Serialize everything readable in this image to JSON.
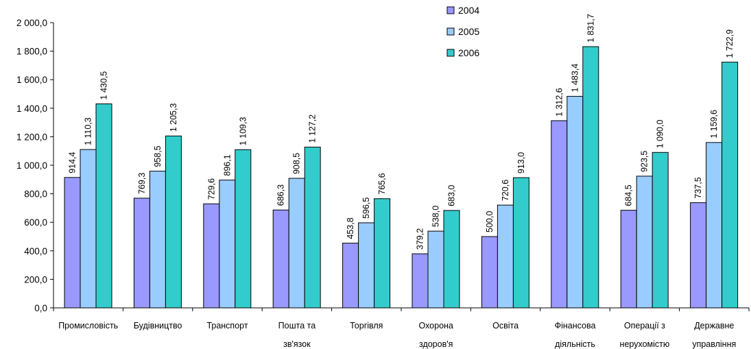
{
  "chart_data": {
    "type": "bar",
    "title": "",
    "xlabel": "",
    "ylabel": "",
    "ylim": [
      0,
      2000
    ],
    "yticks": [
      0,
      200,
      400,
      600,
      800,
      1000,
      1200,
      1400,
      1600,
      1800,
      2000
    ],
    "ytick_labels": [
      "0,0",
      "200,0",
      "400,0",
      "600,0",
      "800,0",
      "1 000,0",
      "1 200,0",
      "1 400,0",
      "1 600,0",
      "1 800,0",
      "2 000,0"
    ],
    "grid": false,
    "legend_position": "top-right",
    "categories": [
      [
        "Промисловість"
      ],
      [
        "Будівництво"
      ],
      [
        "Транспорт"
      ],
      [
        "Пошта та",
        "зв'язок"
      ],
      [
        "Торгівля"
      ],
      [
        "Охорона",
        "здоров'я"
      ],
      [
        "Освіта"
      ],
      [
        "Фінансова",
        "діяльність"
      ],
      [
        "Операції з",
        "нерухомістю"
      ],
      [
        "Державне",
        "управління"
      ]
    ],
    "series": [
      {
        "name": "2004",
        "color": "#9999ff",
        "values": [
          914.4,
          769.3,
          729.6,
          686.3,
          453.8,
          379.2,
          500.0,
          1312.6,
          684.5,
          737.5
        ],
        "labels": [
          "914,4",
          "769,3",
          "729,6",
          "686,3",
          "453,8",
          "379,2",
          "500,0",
          "1 312,6",
          "684,5",
          "737,5"
        ]
      },
      {
        "name": "2005",
        "color": "#99ccff",
        "values": [
          1110.3,
          958.5,
          896.1,
          908.5,
          596.5,
          538.0,
          720.6,
          1483.4,
          923.5,
          1159.6
        ],
        "labels": [
          "1 110,3",
          "958,5",
          "896,1",
          "908,5",
          "596,5",
          "538,0",
          "720,6",
          "1 483,4",
          "923,5",
          "1 159,6"
        ]
      },
      {
        "name": "2006",
        "color": "#33cccc",
        "values": [
          1430.5,
          1205.3,
          1109.3,
          1127.2,
          765.6,
          683.0,
          913.0,
          1831.7,
          1090.0,
          1722.9
        ],
        "labels": [
          "1 430,5",
          "1 205,3",
          "1 109,3",
          "1 127,2",
          "765,6",
          "683,0",
          "913,0",
          "1 831,7",
          "1 090,0",
          "1 722,9"
        ]
      }
    ]
  }
}
